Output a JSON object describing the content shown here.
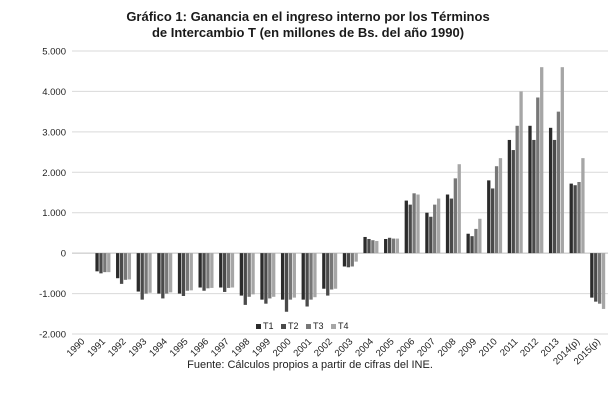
{
  "chart_data": {
    "type": "bar",
    "title_lines": [
      "Gráfico 1: Ganancia en el ingreso interno por los Términos",
      "de Intercambio T (en millones de Bs. del año 1990)"
    ],
    "xlabel": "",
    "ylabel": "",
    "ylim": [
      -2000,
      5000
    ],
    "yticks": [
      5000,
      4000,
      3000,
      2000,
      1000,
      0,
      -1000,
      -2000
    ],
    "ytick_labels": [
      "5.000",
      "4.000",
      "3.000",
      "2.000",
      "1.000",
      "0",
      "-1.000",
      "-2.000"
    ],
    "grid": true,
    "legend_position": "bottom-center",
    "categories": [
      "1990",
      "1991",
      "1992",
      "1993",
      "1994",
      "1995",
      "1996",
      "1997",
      "1998",
      "1999",
      "2000",
      "2001",
      "2002",
      "2003",
      "2004",
      "2005",
      "2006",
      "2007",
      "2008",
      "2009",
      "2010",
      "2011",
      "2012",
      "2013",
      "2014(p)",
      "2015(p)"
    ],
    "series": [
      {
        "name": "T1",
        "color": "#2b2b2b",
        "values": [
          0,
          -450,
          -620,
          -950,
          -1000,
          -1000,
          -850,
          -850,
          -1050,
          -1150,
          -1150,
          -1150,
          -880,
          -330,
          400,
          350,
          1300,
          1000,
          1450,
          480,
          1800,
          2800,
          3150,
          3100,
          1720,
          -1100
        ]
      },
      {
        "name": "T2",
        "color": "#4a4a4a",
        "values": [
          0,
          -500,
          -760,
          -1150,
          -1120,
          -1060,
          -930,
          -960,
          -1280,
          -1250,
          -1450,
          -1320,
          -1050,
          -350,
          350,
          380,
          1200,
          900,
          1350,
          420,
          1600,
          2550,
          2800,
          2800,
          1680,
          -1200
        ]
      },
      {
        "name": "T3",
        "color": "#777777",
        "values": [
          0,
          -470,
          -660,
          -1000,
          -1000,
          -930,
          -870,
          -860,
          -1080,
          -1120,
          -1150,
          -1150,
          -900,
          -330,
          320,
          360,
          1480,
          1200,
          1850,
          600,
          2150,
          3150,
          3850,
          3500,
          1760,
          -1250
        ]
      },
      {
        "name": "T4",
        "color": "#a6a6a6",
        "values": [
          0,
          -470,
          -650,
          -980,
          -970,
          -920,
          -860,
          -850,
          -1020,
          -1080,
          -1100,
          -1090,
          -880,
          -210,
          300,
          360,
          1450,
          1350,
          2200,
          850,
          2350,
          4000,
          4600,
          4600,
          2350,
          -1380
        ]
      }
    ]
  },
  "source_note": "Fuente: Cálculos propios a partir de cifras del INE."
}
